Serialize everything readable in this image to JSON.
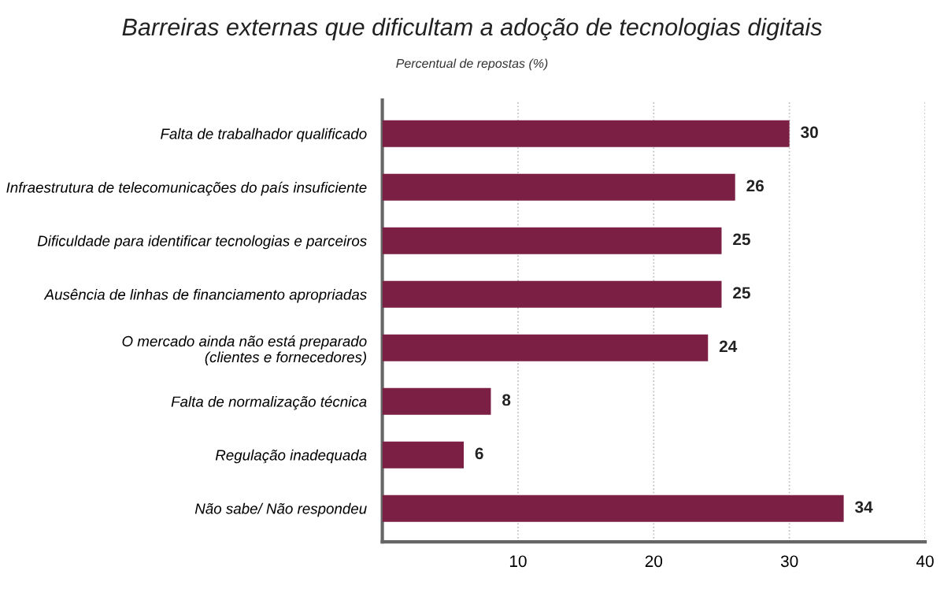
{
  "chart_data": {
    "type": "bar",
    "orientation": "horizontal",
    "title": "Barreiras externas que dificultam a adoção de tecnologias digitais",
    "subtitle": "Percentual de repostas (%)",
    "categories": [
      "Falta de trabalhador qualificado",
      "Infraestrutura de telecomunicações do país insuficiente",
      "Dificuldade para identificar tecnologias e parceiros",
      "Ausência de linhas de financiamento apropriadas",
      "O mercado ainda não está preparado\n(clientes e fornecedores)",
      "Falta de normalização técnica",
      "Regulação inadequada",
      "Não sabe/ Não respondeu"
    ],
    "values": [
      30,
      26,
      25,
      25,
      24,
      8,
      6,
      34
    ],
    "color": "#7b1f45",
    "xlim": [
      0,
      40
    ],
    "xticks": [
      10,
      20,
      30,
      40
    ],
    "grid": "x",
    "data_labels": true
  }
}
